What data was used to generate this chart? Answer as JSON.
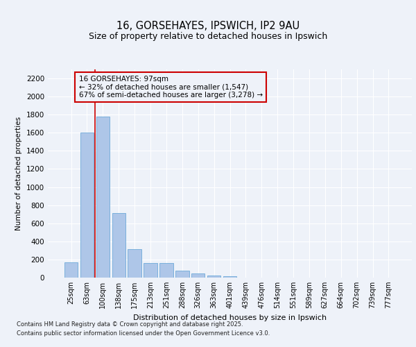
{
  "title_line1": "16, GORSEHAYES, IPSWICH, IP2 9AU",
  "title_line2": "Size of property relative to detached houses in Ipswich",
  "xlabel": "Distribution of detached houses by size in Ipswich",
  "ylabel": "Number of detached properties",
  "categories": [
    "25sqm",
    "63sqm",
    "100sqm",
    "138sqm",
    "175sqm",
    "213sqm",
    "251sqm",
    "288sqm",
    "326sqm",
    "363sqm",
    "401sqm",
    "439sqm",
    "476sqm",
    "514sqm",
    "551sqm",
    "589sqm",
    "627sqm",
    "664sqm",
    "702sqm",
    "739sqm",
    "777sqm"
  ],
  "values": [
    165,
    1600,
    1780,
    710,
    315,
    160,
    160,
    80,
    45,
    25,
    18,
    0,
    0,
    0,
    0,
    0,
    0,
    0,
    0,
    0,
    0
  ],
  "bar_color": "#aec6e8",
  "bar_edge_color": "#5a9fd4",
  "vline_x": 1.5,
  "vline_color": "#cc0000",
  "annotation_title": "16 GORSEHAYES: 97sqm",
  "annotation_line2": "← 32% of detached houses are smaller (1,547)",
  "annotation_line3": "67% of semi-detached houses are larger (3,278) →",
  "annotation_box_color": "#cc0000",
  "ylim": [
    0,
    2300
  ],
  "yticks": [
    0,
    200,
    400,
    600,
    800,
    1000,
    1200,
    1400,
    1600,
    1800,
    2000,
    2200
  ],
  "background_color": "#eef2f9",
  "grid_color": "#ffffff",
  "footer_line1": "Contains HM Land Registry data © Crown copyright and database right 2025.",
  "footer_line2": "Contains public sector information licensed under the Open Government Licence v3.0."
}
